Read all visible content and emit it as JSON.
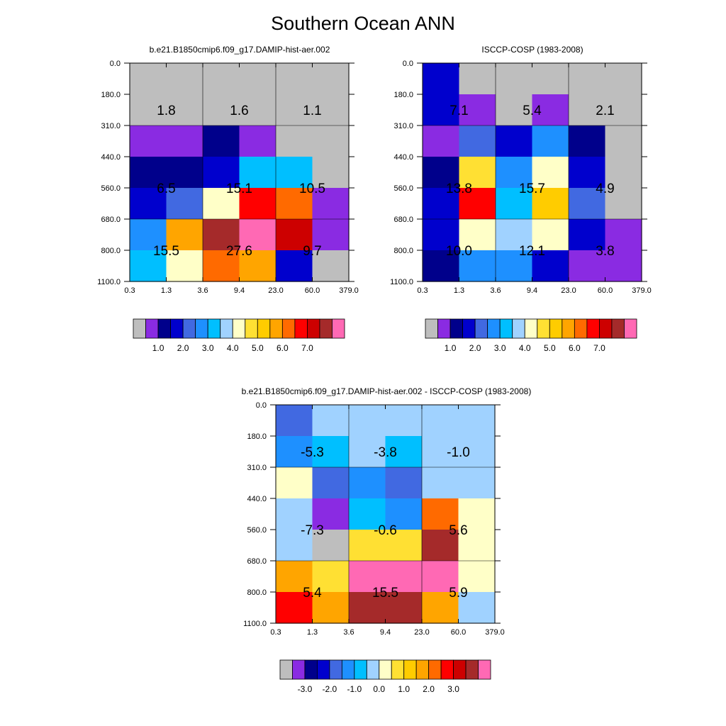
{
  "title": "Southern Ocean ANN",
  "colors": {
    "model_obs": [
      "#bebebe",
      "#8a2be2",
      "#00008b",
      "#0000cd",
      "#4169e1",
      "#1e90ff",
      "#00bfff",
      "#a0d2ff",
      "#ffffc8",
      "#ffe033",
      "#ffcc00",
      "#ffa500",
      "#ff6a00",
      "#ff0000",
      "#cd0000",
      "#a52a2a",
      "#ff69b4"
    ],
    "diff": [
      "#bebebe",
      "#8a2be2",
      "#00008b",
      "#0000cd",
      "#4169e1",
      "#1e90ff",
      "#00bfff",
      "#a0d2ff",
      "#ffffc8",
      "#ffe033",
      "#ffcc00",
      "#ffa500",
      "#ff6a00",
      "#ff0000",
      "#cd0000",
      "#a52a2a",
      "#ff69b4"
    ]
  },
  "chart_data": [
    {
      "type": "heatmap",
      "title": "b.e21.B1850cmip6.f09_g17.DAMIP-hist-aer.002",
      "x_ticks": [
        "0.3",
        "1.3",
        "3.6",
        "9.4",
        "23.0",
        "60.0",
        "379.0"
      ],
      "y_ticks": [
        "0.0",
        "180.0",
        "310.0",
        "440.0",
        "560.0",
        "680.0",
        "800.0",
        "1100.0"
      ],
      "cell_colors": [
        [
          0,
          0,
          0,
          0,
          0,
          0
        ],
        [
          0,
          0,
          0,
          0,
          0,
          0
        ],
        [
          1,
          1,
          2,
          1,
          0,
          0
        ],
        [
          2,
          2,
          3,
          6,
          6,
          0
        ],
        [
          3,
          4,
          8,
          13,
          12,
          1
        ],
        [
          5,
          11,
          15,
          16,
          14,
          1
        ],
        [
          6,
          8,
          12,
          11,
          3,
          0
        ]
      ],
      "box_labels": [
        {
          "text": "1.8",
          "xi": 0,
          "yi": 0
        },
        {
          "text": "1.6",
          "xi": 1,
          "yi": 0
        },
        {
          "text": "1.1",
          "xi": 2,
          "yi": 0
        },
        {
          "text": "6.5",
          "xi": 0,
          "yi": 1
        },
        {
          "text": "15.1",
          "xi": 1,
          "yi": 1
        },
        {
          "text": "10.5",
          "xi": 2,
          "yi": 1
        },
        {
          "text": "15.5",
          "xi": 0,
          "yi": 2
        },
        {
          "text": "27.6",
          "xi": 1,
          "yi": 2
        },
        {
          "text": "9.7",
          "xi": 2,
          "yi": 2
        }
      ],
      "colorbar_labels": [
        "1.0",
        "2.0",
        "3.0",
        "4.0",
        "5.0",
        "6.0",
        "7.0"
      ]
    },
    {
      "type": "heatmap",
      "title": "ISCCP-COSP (1983-2008)",
      "x_ticks": [
        "0.3",
        "1.3",
        "3.6",
        "9.4",
        "23.0",
        "60.0",
        "379.0"
      ],
      "y_ticks": [
        "0.0",
        "180.0",
        "310.0",
        "440.0",
        "560.0",
        "680.0",
        "800.0",
        "1100.0"
      ],
      "cell_colors": [
        [
          3,
          0,
          0,
          0,
          0,
          0
        ],
        [
          3,
          1,
          0,
          1,
          0,
          0
        ],
        [
          1,
          4,
          3,
          5,
          2,
          0
        ],
        [
          2,
          9,
          5,
          8,
          3,
          0
        ],
        [
          3,
          13,
          6,
          10,
          4,
          0
        ],
        [
          3,
          8,
          7,
          8,
          3,
          1
        ],
        [
          2,
          5,
          5,
          3,
          1,
          1
        ]
      ],
      "box_labels": [
        {
          "text": "7.1",
          "xi": 0,
          "yi": 0
        },
        {
          "text": "5.4",
          "xi": 1,
          "yi": 0
        },
        {
          "text": "2.1",
          "xi": 2,
          "yi": 0
        },
        {
          "text": "13.8",
          "xi": 0,
          "yi": 1
        },
        {
          "text": "15.7",
          "xi": 1,
          "yi": 1
        },
        {
          "text": "4.9",
          "xi": 2,
          "yi": 1
        },
        {
          "text": "10.0",
          "xi": 0,
          "yi": 2
        },
        {
          "text": "12.1",
          "xi": 1,
          "yi": 2
        },
        {
          "text": "3.8",
          "xi": 2,
          "yi": 2
        }
      ],
      "colorbar_labels": [
        "1.0",
        "2.0",
        "3.0",
        "4.0",
        "5.0",
        "6.0",
        "7.0"
      ]
    },
    {
      "type": "heatmap",
      "title": "b.e21.B1850cmip6.f09_g17.DAMIP-hist-aer.002 - ISCCP-COSP (1983-2008)",
      "x_ticks": [
        "0.3",
        "1.3",
        "3.6",
        "9.4",
        "23.0",
        "60.0",
        "379.0"
      ],
      "y_ticks": [
        "0.0",
        "180.0",
        "310.0",
        "440.0",
        "560.0",
        "680.0",
        "800.0",
        "1100.0"
      ],
      "cell_colors": [
        [
          4,
          7,
          7,
          7,
          7,
          7
        ],
        [
          5,
          6,
          7,
          6,
          7,
          7
        ],
        [
          8,
          4,
          5,
          4,
          7,
          7
        ],
        [
          7,
          1,
          6,
          5,
          12,
          8
        ],
        [
          7,
          0,
          9,
          9,
          15,
          8
        ],
        [
          11,
          9,
          16,
          16,
          16,
          8
        ],
        [
          13,
          11,
          15,
          15,
          11,
          7
        ]
      ],
      "box_labels": [
        {
          "text": "-5.3",
          "xi": 0,
          "yi": 0
        },
        {
          "text": "-3.8",
          "xi": 1,
          "yi": 0
        },
        {
          "text": "-1.0",
          "xi": 2,
          "yi": 0
        },
        {
          "text": "-7.3",
          "xi": 0,
          "yi": 1
        },
        {
          "text": "-0.6",
          "xi": 1,
          "yi": 1
        },
        {
          "text": "5.6",
          "xi": 2,
          "yi": 1
        },
        {
          "text": "5.4",
          "xi": 0,
          "yi": 2
        },
        {
          "text": "15.5",
          "xi": 1,
          "yi": 2
        },
        {
          "text": "5.9",
          "xi": 2,
          "yi": 2
        }
      ],
      "colorbar_labels": [
        "-3.0",
        "-2.0",
        "-1.0",
        "0.0",
        "1.0",
        "2.0",
        "3.0"
      ]
    }
  ]
}
